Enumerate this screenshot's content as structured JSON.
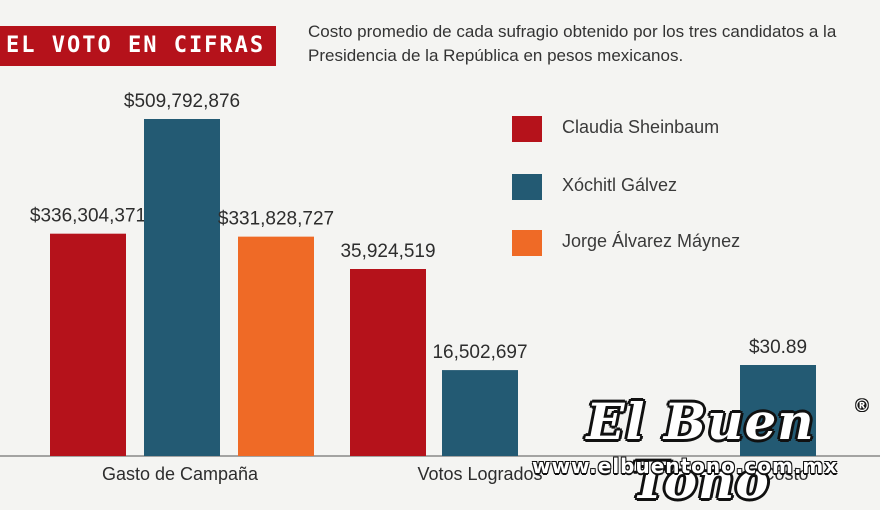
{
  "header": {
    "badge": "EL VOTO EN CIFRAS",
    "subtitle": "Costo promedio de cada sufragio obtenido por los tres candidatos a la Presidencia de la República en pesos mexicanos."
  },
  "colors": {
    "sheinbaum": "#b5121b",
    "galvez": "#235a73",
    "maynez": "#ef6a26",
    "badge": "#b5121b",
    "baseline": "#888888"
  },
  "chart_data": {
    "type": "bar",
    "categories": [
      "Gasto de Campaña",
      "Votos Logrados",
      "Costo"
    ],
    "series": [
      {
        "name": "Claudia Sheinbaum",
        "color": "#b5121b",
        "values": [
          336304371,
          35924519,
          null
        ],
        "labels": [
          "$336,304,371",
          "35,924,519",
          ""
        ]
      },
      {
        "name": "Xóchitl Gálvez",
        "color": "#235a73",
        "values": [
          509792876,
          16502697,
          30.89
        ],
        "labels": [
          "$509,792,876",
          "16,502,697",
          "$30.89"
        ]
      },
      {
        "name": "Jorge Álvarez Máynez",
        "color": "#ef6a26",
        "values": [
          331828727,
          null,
          null
        ],
        "labels": [
          "$331,828,727",
          "",
          ""
        ]
      }
    ],
    "note": "Each category group is drawn on its own scale",
    "legend_position": "top-right",
    "grid": false
  },
  "watermark": {
    "logo": "El Buen Tono",
    "reg": "®",
    "url": "www.elbuentono.com.mx"
  }
}
